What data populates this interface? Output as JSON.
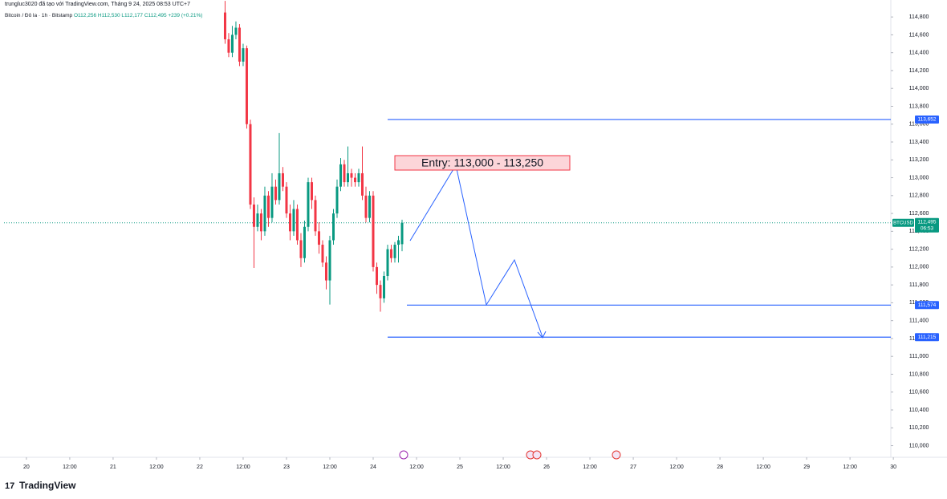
{
  "chart_data": {
    "type": "candlestick",
    "header": "trungluc3020 đã tạo với TradingView.com, Tháng 9 24, 2025 08:53 UTC+7",
    "legend": {
      "symbol": "Bitcoin / Đô la · 1h · Bitstamp",
      "open": "O112,256",
      "high": "H112,530",
      "low": "L112,177",
      "close": "C112,495",
      "change": "+239 (+0.21%)"
    },
    "annotation": "Entry: 113,000 - 113,250",
    "footer": "TradingView",
    "x": [
      55,
      56,
      57,
      58,
      59,
      60,
      61,
      62,
      63,
      64,
      65,
      66,
      67,
      68,
      69,
      70,
      71,
      72,
      73,
      74,
      75,
      76,
      77,
      78,
      79,
      80,
      81,
      82,
      83,
      84,
      85,
      86,
      87,
      88,
      89,
      90,
      91,
      92,
      93,
      94,
      95,
      96,
      97,
      98,
      99,
      100,
      101,
      102,
      103,
      104
    ],
    "series": [
      {
        "open": [
          114850,
          114550,
          114400,
          114600,
          114680,
          114300,
          114450,
          113600,
          112700,
          112450,
          112600,
          112400,
          112800,
          112550,
          112900,
          112750,
          113050,
          112900,
          112600,
          112400,
          112650,
          112300,
          112100,
          112450,
          112950,
          112750,
          112400,
          112250,
          112050,
          111850,
          112300,
          112600,
          112900,
          113150,
          112950,
          113050,
          113000,
          112950,
          113050,
          112800,
          112550,
          112800,
          112000,
          111800,
          111650,
          111900,
          112200,
          112100,
          112250,
          112256
        ],
        "high": [
          114980,
          114620,
          114700,
          114750,
          114720,
          114500,
          114480,
          113650,
          112780,
          112700,
          112650,
          112900,
          112850,
          113050,
          112980,
          113500,
          113120,
          112950,
          112700,
          112750,
          112700,
          112380,
          112520,
          113000,
          113000,
          112800,
          112500,
          112300,
          112120,
          112350,
          112650,
          112980,
          113220,
          113200,
          113350,
          113100,
          113050,
          113100,
          113350,
          112900,
          112850,
          112850,
          112050,
          111850,
          111950,
          112250,
          112250,
          112280,
          112350,
          112530
        ],
        "low": [
          114500,
          114350,
          114350,
          114550,
          114250,
          114250,
          113550,
          112650,
          111990,
          112400,
          112300,
          112350,
          112450,
          112500,
          112700,
          112700,
          112850,
          112550,
          112300,
          112350,
          112250,
          112000,
          112050,
          112400,
          112650,
          112350,
          112150,
          112000,
          111750,
          111580,
          112250,
          112550,
          112850,
          112900,
          112900,
          112900,
          112900,
          112900,
          112750,
          112500,
          112500,
          111950,
          111700,
          111500,
          111600,
          111850,
          112050,
          112050,
          112050,
          112177
        ],
        "close": [
          114550,
          114400,
          114600,
          114680,
          114300,
          114450,
          113600,
          112700,
          112450,
          112600,
          112400,
          112800,
          112550,
          112900,
          112750,
          113050,
          112900,
          112600,
          112400,
          112650,
          112300,
          112100,
          112450,
          112950,
          112750,
          112400,
          112250,
          112050,
          111850,
          112300,
          112600,
          112900,
          113150,
          112950,
          113050,
          113000,
          112950,
          113050,
          112800,
          112550,
          112800,
          112000,
          111800,
          111650,
          111900,
          112200,
          112100,
          112250,
          112300,
          112495
        ]
      }
    ],
    "up_color": "#089981",
    "down_color": "#f23645",
    "hlines": [
      {
        "value": 113652,
        "label": "113,652"
      },
      {
        "value": 111574,
        "label": "111,574"
      },
      {
        "value": 111215,
        "label": "111,215"
      }
    ],
    "line_color": "#2962ff",
    "last_price": {
      "symbol": "BTCUSD",
      "value": 112495,
      "label": "112,495",
      "countdown": "06:53"
    },
    "xlim": [
      -6.2,
      239.3
    ],
    "xticks": [
      {
        "value": 0,
        "label": "20"
      },
      {
        "value": 12,
        "label": "12:00"
      },
      {
        "value": 24,
        "label": "21"
      },
      {
        "value": 36,
        "label": "12:00"
      },
      {
        "value": 48,
        "label": "22"
      },
      {
        "value": 60,
        "label": "12:00"
      },
      {
        "value": 72,
        "label": "23"
      },
      {
        "value": 84,
        "label": "12:00"
      },
      {
        "value": 96,
        "label": "24"
      },
      {
        "value": 108,
        "label": "12:00"
      },
      {
        "value": 120,
        "label": "25"
      },
      {
        "value": 132,
        "label": "12:00"
      },
      {
        "value": 144,
        "label": "26"
      },
      {
        "value": 156,
        "label": "12:00"
      },
      {
        "value": 168,
        "label": "27"
      },
      {
        "value": 180,
        "label": "12:00"
      },
      {
        "value": 192,
        "label": "28"
      },
      {
        "value": 204,
        "label": "12:00"
      },
      {
        "value": 216,
        "label": "29"
      },
      {
        "value": 228,
        "label": "12:00"
      },
      {
        "value": 240,
        "label": "30"
      }
    ],
    "ylim": [
      109870,
      114990
    ],
    "yticks": [
      {
        "value": 110000,
        "label": "110,000"
      },
      {
        "value": 110200,
        "label": "110,200"
      },
      {
        "value": 110400,
        "label": "110,400"
      },
      {
        "value": 110600,
        "label": "110,600"
      },
      {
        "value": 110800,
        "label": "110,800"
      },
      {
        "value": 111000,
        "label": "111,000"
      },
      {
        "value": 111200,
        "label": "111,200"
      },
      {
        "value": 111400,
        "label": "111,400"
      },
      {
        "value": 111600,
        "label": "111,600"
      },
      {
        "value": 111800,
        "label": "111,800"
      },
      {
        "value": 112000,
        "label": "112,000"
      },
      {
        "value": 112200,
        "label": "112,200"
      },
      {
        "value": 112400,
        "label": "112,400"
      },
      {
        "value": 112600,
        "label": "112,600"
      },
      {
        "value": 112800,
        "label": "112,800"
      },
      {
        "value": 113000,
        "label": "113,000"
      },
      {
        "value": 113200,
        "label": "113,200"
      },
      {
        "value": 113400,
        "label": "113,400"
      },
      {
        "value": 113600,
        "label": "113,600"
      },
      {
        "value": 113800,
        "label": "113,800"
      },
      {
        "value": 114000,
        "label": "114,000"
      },
      {
        "value": 114200,
        "label": "114,200"
      },
      {
        "value": 114400,
        "label": "114,400"
      },
      {
        "value": 114600,
        "label": "114,600"
      },
      {
        "value": 114800,
        "label": "114,800"
      }
    ]
  }
}
